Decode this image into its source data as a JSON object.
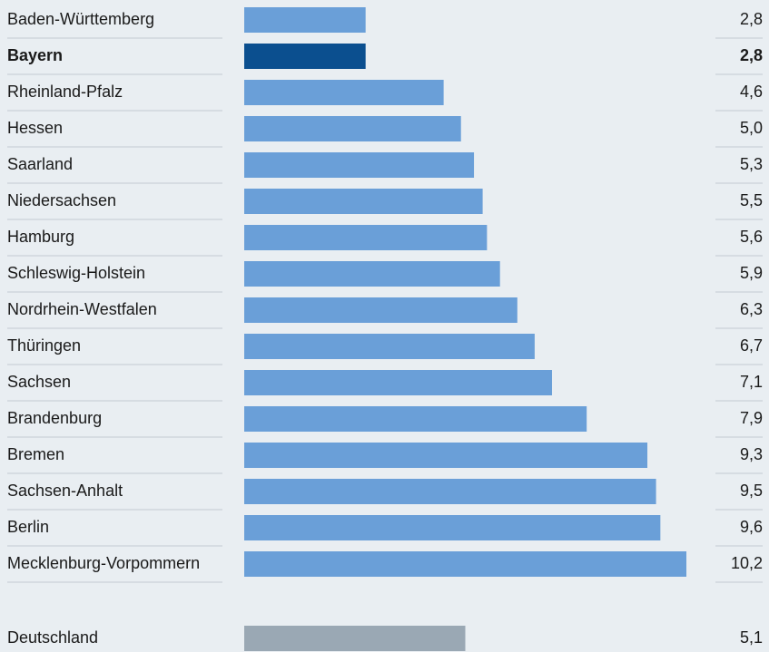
{
  "chart_data": {
    "type": "bar",
    "orientation": "horizontal",
    "categories": [
      "Baden-Württemberg",
      "Bayern",
      "Rheinland-Pfalz",
      "Hessen",
      "Saarland",
      "Niedersachsen",
      "Hamburg",
      "Schleswig-Holstein",
      "Nordrhein-Westfalen",
      "Thüringen",
      "Sachsen",
      "Brandenburg",
      "Bremen",
      "Sachsen-Anhalt",
      "Berlin",
      "Mecklenburg-Vorpommern"
    ],
    "values": [
      2.8,
      2.8,
      4.6,
      5.0,
      5.3,
      5.5,
      5.6,
      5.9,
      6.3,
      6.7,
      7.1,
      7.9,
      9.3,
      9.5,
      9.6,
      10.2
    ],
    "value_labels": [
      "2,8",
      "2,8",
      "4,6",
      "5,0",
      "5,3",
      "5,5",
      "5,6",
      "5,9",
      "6,3",
      "6,7",
      "7,1",
      "7,9",
      "9,3",
      "9,5",
      "9,6",
      "10,2"
    ],
    "color": "#6a9fd8",
    "highlight": 1,
    "highlight_color": "#0b4f8f",
    "total": {
      "label": "Deutschland",
      "value": 5.1,
      "value_label": "5,1",
      "color": "#9aa8b4"
    }
  }
}
